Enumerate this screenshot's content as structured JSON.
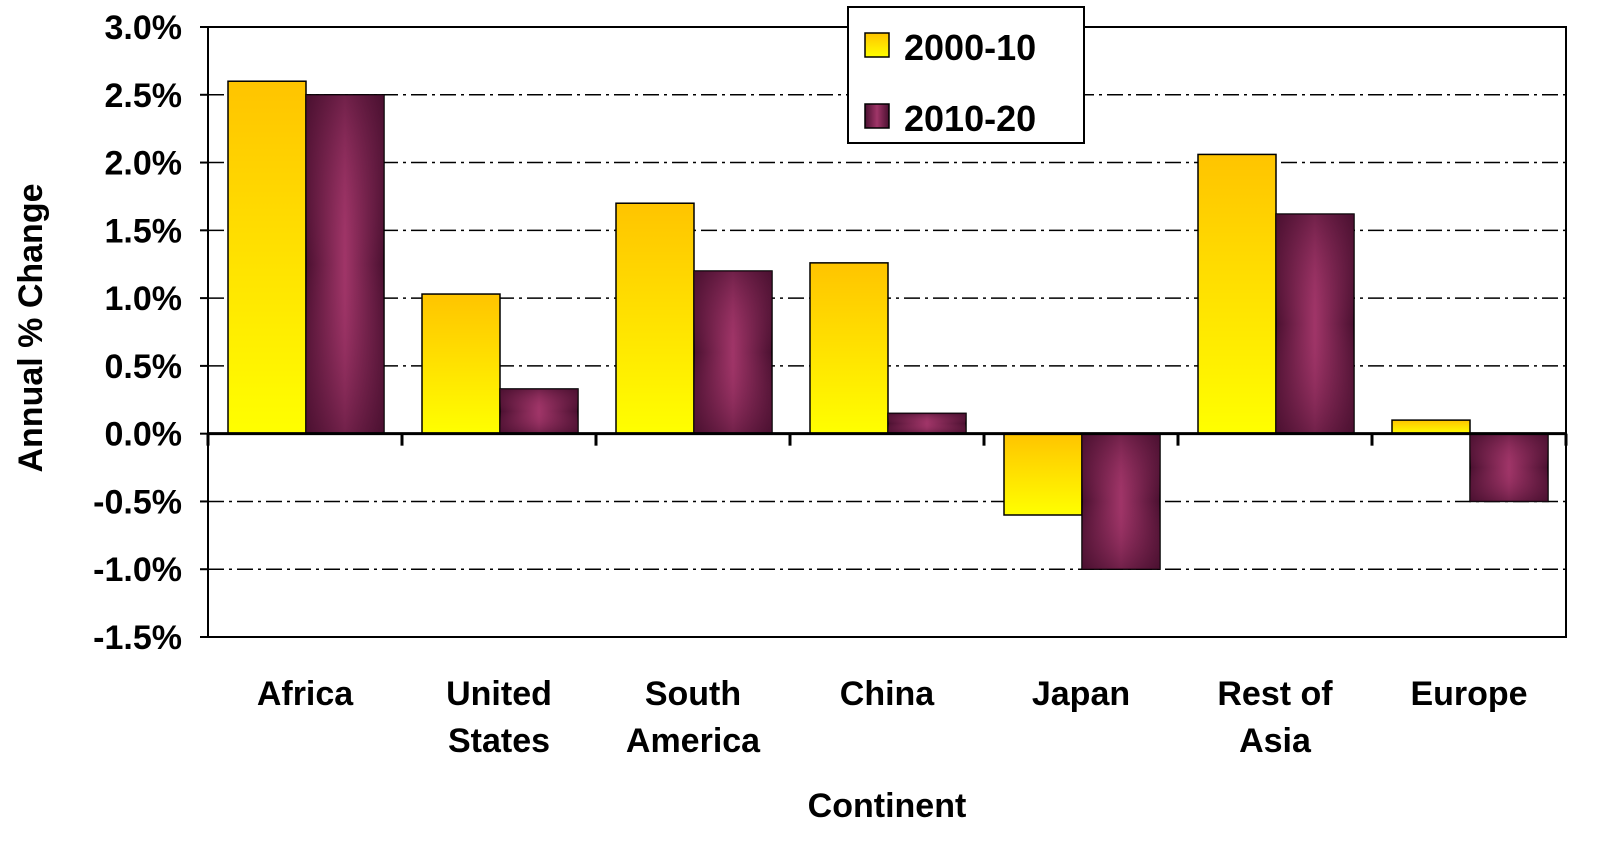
{
  "chart_data": {
    "type": "bar",
    "title": "",
    "xlabel": "Continent",
    "ylabel": "Annual % Change",
    "categories": [
      [
        "Africa"
      ],
      [
        "United",
        "States"
      ],
      [
        "South",
        "America"
      ],
      [
        "China"
      ],
      [
        "Japan"
      ],
      [
        "Rest of",
        "Asia"
      ],
      [
        "Europe"
      ]
    ],
    "series": [
      {
        "name": "2000-10",
        "values": [
          2.6,
          1.03,
          1.7,
          1.26,
          -0.6,
          2.06,
          0.1
        ],
        "color_top": "#FFC400",
        "color_bottom": "#FFFF00"
      },
      {
        "name": "2010-20",
        "values": [
          2.5,
          0.33,
          1.2,
          0.15,
          -1.0,
          1.62,
          -0.5
        ],
        "color_edge": "#4A1030",
        "color_center": "#A03568"
      }
    ],
    "ylim": [
      -1.5,
      3.0
    ],
    "yticks": [
      "3.0%",
      "2.5%",
      "2.0%",
      "1.5%",
      "1.0%",
      "0.5%",
      "0.0%",
      "-0.5%",
      "-1.0%",
      "-1.5%"
    ],
    "ytick_values": [
      3.0,
      2.5,
      2.0,
      1.5,
      1.0,
      0.5,
      0.0,
      -0.5,
      -1.0,
      -1.5
    ],
    "grid": true,
    "grid_style": "dash-dot",
    "legend_position": "top-center"
  }
}
